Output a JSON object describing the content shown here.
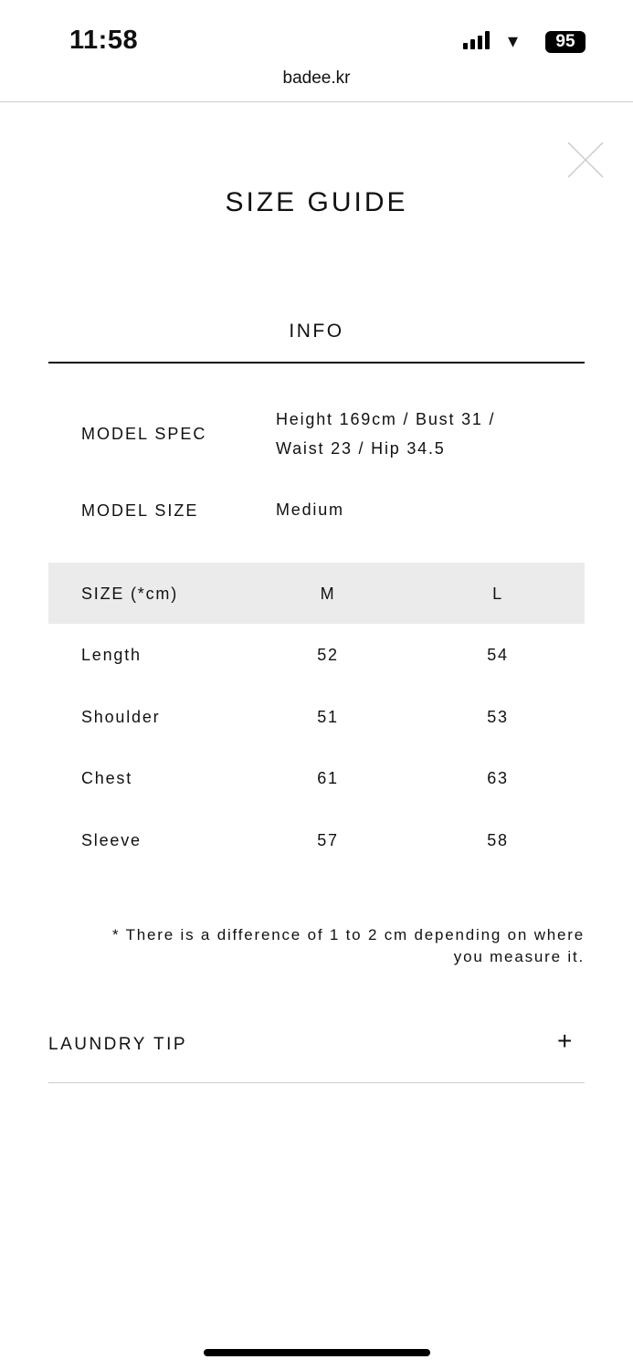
{
  "status_bar": {
    "time": "11:58",
    "battery": "95"
  },
  "browser": {
    "url": "badee.kr"
  },
  "modal": {
    "title": "SIZE GUIDE",
    "section": "INFO",
    "model_spec": {
      "label": "MODEL SPEC",
      "line1": "Height 169cm / Bust 31 /",
      "line2": "Waist 23 / Hip 34.5"
    },
    "model_size": {
      "label": "MODEL SIZE",
      "value": "Medium"
    },
    "table": {
      "headers": [
        "SIZE (*cm)",
        "M",
        "L"
      ],
      "rows": [
        [
          "Length",
          "52",
          "54"
        ],
        [
          "Shoulder",
          "51",
          "53"
        ],
        [
          "Chest",
          "61",
          "63"
        ],
        [
          "Sleeve",
          "57",
          "58"
        ]
      ]
    },
    "note_line1": "* There is a difference of 1 to 2 cm depending on where",
    "note_line2": "you measure it.",
    "laundry": {
      "label": "LAUNDRY TIP"
    }
  }
}
